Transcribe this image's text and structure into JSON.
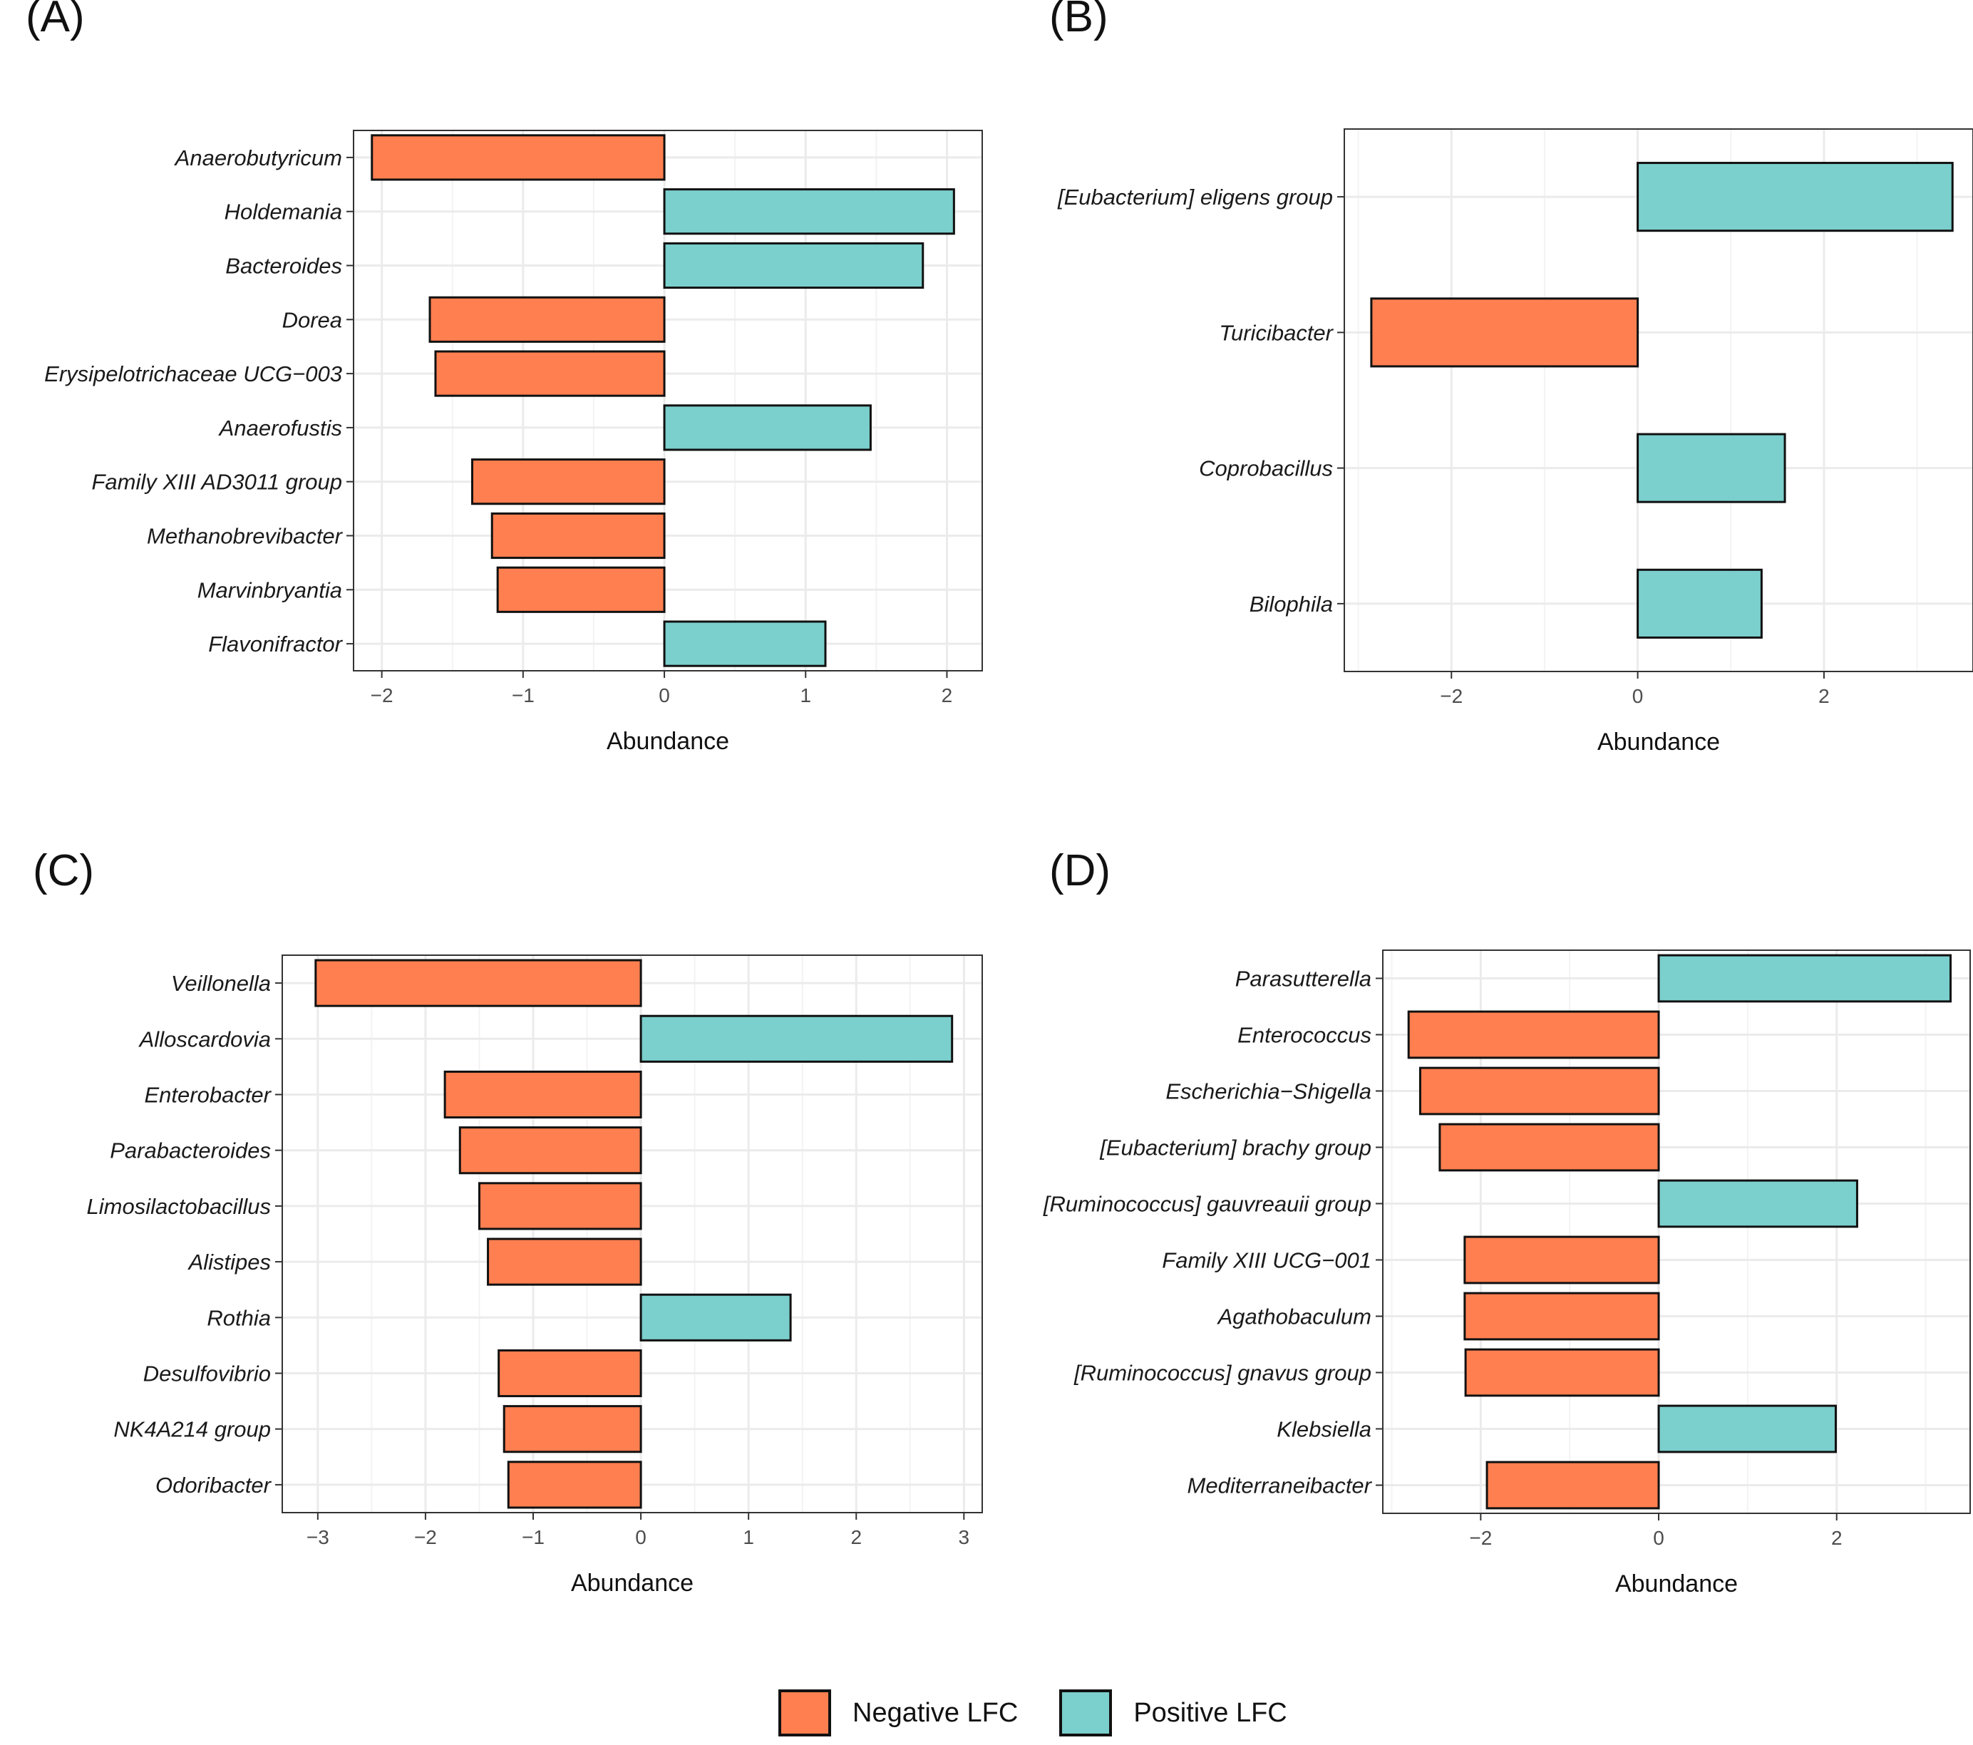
{
  "colors": {
    "negative": "#FF7F50",
    "positive": "#7BCFCD",
    "border": "#111111",
    "grid": "#EBEBEB"
  },
  "legend": {
    "negative_label": "Negative LFC",
    "positive_label": "Positive LFC"
  },
  "chart_data": [
    {
      "type": "bar",
      "panel": "(A)",
      "orientation": "horizontal",
      "xlabel": "Abundance",
      "xlim": [
        -2.2,
        2.25
      ],
      "xticks": [
        -2,
        -1,
        0,
        1,
        2
      ],
      "xtick_labels": [
        "−2",
        "−1",
        "0",
        "1",
        "2"
      ],
      "categories": [
        "Anaerobutyricum",
        "Holdemania",
        "Bacteroides",
        "Dorea",
        "Erysipelotrichaceae UCG−003",
        "Anaerofustis",
        "Family XIII AD3011 group",
        "Methanobrevibacter",
        "Marvinbryantia",
        "Flavonifractor"
      ],
      "values": [
        -2.07,
        2.05,
        1.83,
        -1.66,
        -1.62,
        1.46,
        -1.36,
        -1.22,
        -1.18,
        1.14
      ]
    },
    {
      "type": "bar",
      "panel": "(B)",
      "orientation": "horizontal",
      "xlabel": "Abundance",
      "xlim": [
        -3.15,
        3.6
      ],
      "xticks": [
        -2,
        0,
        2
      ],
      "xtick_labels": [
        "−2",
        "0",
        "2"
      ],
      "categories": [
        "[Eubacterium] eligens group",
        "Turicibacter",
        "Coprobacillus",
        "Bilophila"
      ],
      "values": [
        3.38,
        -2.86,
        1.58,
        1.33
      ]
    },
    {
      "type": "bar",
      "panel": "(C)",
      "orientation": "horizontal",
      "xlabel": "Abundance",
      "xlim": [
        -3.33,
        3.17
      ],
      "xticks": [
        -3,
        -2,
        -1,
        0,
        1,
        2,
        3
      ],
      "xtick_labels": [
        "−3",
        "−2",
        "−1",
        "0",
        "1",
        "2",
        "3"
      ],
      "categories": [
        "Veillonella",
        "Alloscardovia",
        "Enterobacter",
        "Parabacteroides",
        "Limosilactobacillus",
        "Alistipes",
        "Rothia",
        "Desulfovibrio",
        "NK4A214 group",
        "Odoribacter"
      ],
      "values": [
        -3.02,
        2.89,
        -1.82,
        -1.68,
        -1.5,
        -1.42,
        1.39,
        -1.32,
        -1.27,
        -1.23
      ]
    },
    {
      "type": "bar",
      "panel": "(D)",
      "orientation": "horizontal",
      "xlabel": "Abundance",
      "xlim": [
        -3.1,
        3.5
      ],
      "xticks": [
        -2,
        0,
        2
      ],
      "xtick_labels": [
        "−2",
        "0",
        "2"
      ],
      "categories": [
        "Parasutterella",
        "Enterococcus",
        "Escherichia−Shigella",
        "[Eubacterium] brachy group",
        "[Ruminococcus] gauvreauii group",
        "Family XIII UCG−001",
        "Agathobaculum",
        "[Ruminococcus] gnavus group",
        "Klebsiella",
        "Mediterraneibacter"
      ],
      "values": [
        3.28,
        -2.81,
        -2.68,
        -2.46,
        2.23,
        -2.18,
        -2.18,
        -2.17,
        1.99,
        -1.93
      ]
    }
  ]
}
